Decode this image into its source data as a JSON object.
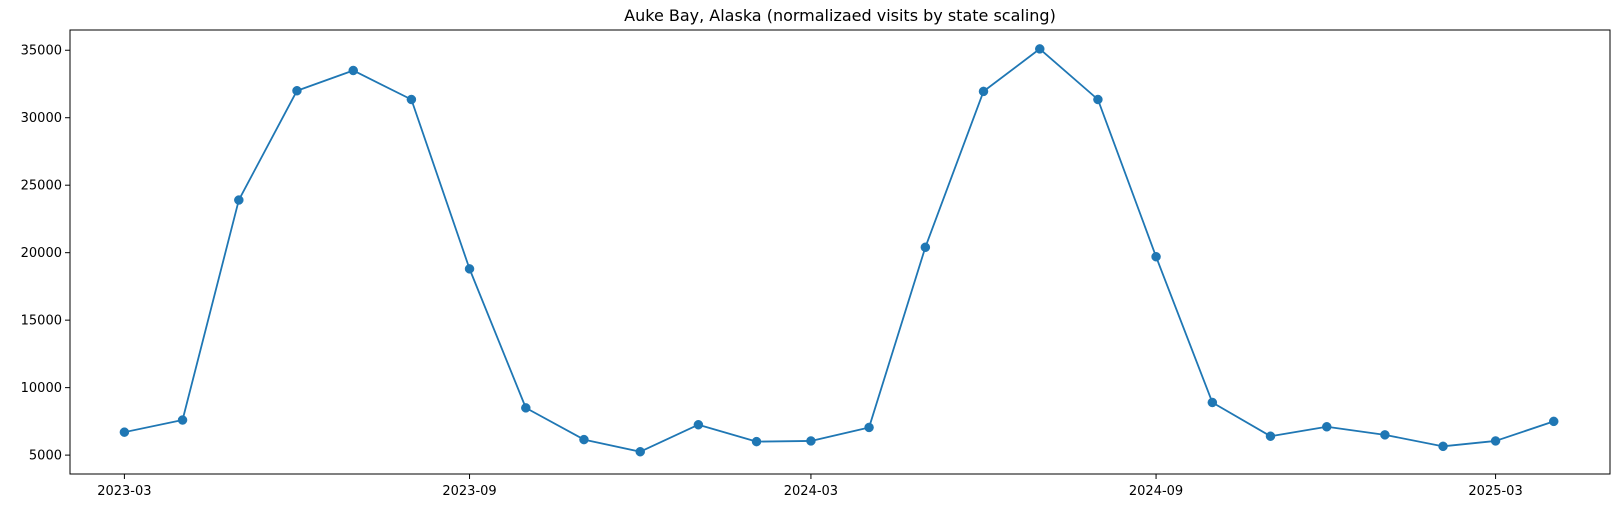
{
  "chart_data": {
    "type": "line",
    "title": "Auke Bay, Alaska (normalizaed visits by state scaling)",
    "xlabel": "",
    "ylabel": "",
    "x": [
      "2023-03-01",
      "2023-04-01",
      "2023-05-01",
      "2023-06-01",
      "2023-07-01",
      "2023-08-01",
      "2023-09-01",
      "2023-10-01",
      "2023-11-01",
      "2023-12-01",
      "2024-01-01",
      "2024-02-01",
      "2024-03-01",
      "2024-04-01",
      "2024-05-01",
      "2024-06-01",
      "2024-07-01",
      "2024-08-01",
      "2024-09-01",
      "2024-10-01",
      "2024-11-01",
      "2024-12-01",
      "2025-01-01",
      "2025-02-01",
      "2025-03-01",
      "2025-04-01"
    ],
    "series": [
      {
        "values": [
          6700,
          7600,
          23900,
          32000,
          33500,
          31350,
          18800,
          8500,
          6150,
          5250,
          7250,
          6000,
          6050,
          7050,
          20400,
          31950,
          35100,
          31350,
          19700,
          8900,
          6400,
          7100,
          6500,
          5650,
          6050,
          7500
        ],
        "color": "#1f77b4",
        "marker": "circle"
      }
    ],
    "xticks": [
      {
        "value": "2023-03-01",
        "label": "2023-03"
      },
      {
        "value": "2023-09-01",
        "label": "2023-09"
      },
      {
        "value": "2024-03-01",
        "label": "2024-03"
      },
      {
        "value": "2024-09-01",
        "label": "2024-09"
      },
      {
        "value": "2025-03-01",
        "label": "2025-03"
      }
    ],
    "yticks": [
      5000,
      10000,
      15000,
      20000,
      25000,
      30000,
      35000
    ],
    "xlim": [
      "2023-01-31",
      "2025-05-01"
    ],
    "ylim": [
      3600,
      36500
    ],
    "grid": false,
    "legend": false
  }
}
